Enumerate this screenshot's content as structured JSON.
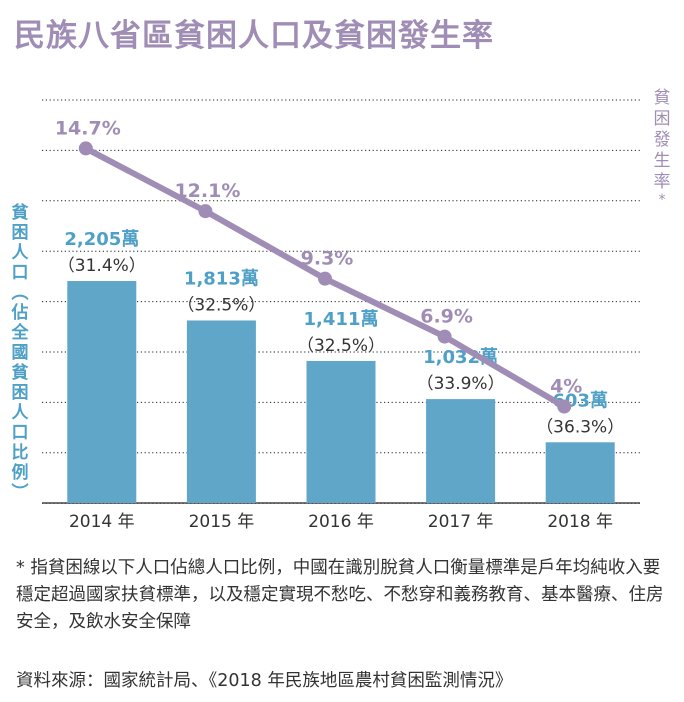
{
  "title": "民族八省區貧困人口及貧困發生率",
  "left_axis_label": [
    "貧",
    "困",
    "人",
    "口",
    "︵",
    "佔",
    "全",
    "國",
    "貧",
    "困",
    "人",
    "口",
    "比",
    "例",
    "︶"
  ],
  "right_axis_label": [
    "貧",
    "困",
    "發",
    "生",
    "率"
  ],
  "right_axis_asterisk": "*",
  "note": "* 指貧困線以下人口佔總人口比例，中國在識別脫貧人口衡量標準是戶年均純收入要穩定超過國家扶貧標準，以及穩定實現不愁吃、不愁穿和義務教育、基本醫療、住房安全，及飲水安全保障",
  "source": "資料來源：國家統計局、《2018 年民族地區農村貧困監測情況》",
  "colors": {
    "bar": "#5fa6c9",
    "bar_label": "#4fa0c7",
    "line": "#a08db5",
    "grid": "#222222",
    "text": "#333333"
  },
  "chart_data": {
    "type": "bar",
    "categories": [
      "2014 年",
      "2015 年",
      "2016 年",
      "2017 年",
      "2018 年"
    ],
    "bar_values": [
      2205,
      1813,
      1411,
      1032,
      603
    ],
    "bar_labels": [
      "2,205萬",
      "1,813萬",
      "1,411萬",
      "1,032萬",
      "603萬"
    ],
    "share_labels": [
      "（31.4%）",
      "（32.5%）",
      "（32.5%）",
      "（33.9%）",
      "（36.3%）"
    ],
    "ylim_bars": [
      0,
      4400
    ],
    "line_values": [
      14.7,
      12.1,
      9.3,
      6.9,
      4
    ],
    "line_labels": [
      "14.7%",
      "12.1%",
      "9.3%",
      "6.9%",
      "4%"
    ],
    "ylim_line": [
      0,
      18.2
    ],
    "grid": "dotted horizontal"
  }
}
